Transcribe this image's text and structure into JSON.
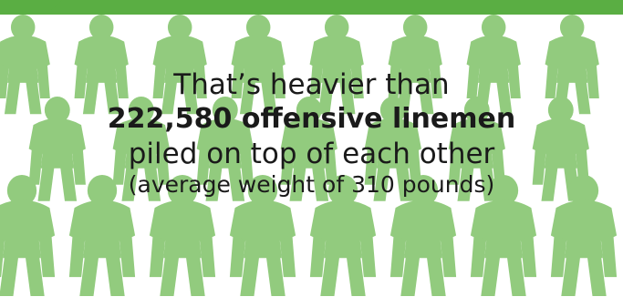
{
  "colors": {
    "accent_green": "#5aae43",
    "player_green": "#7fc267",
    "text": "#1a1a1a"
  },
  "caption": {
    "line1": "That’s heavier than",
    "line2": "222,580 offensive linemen",
    "line3": "piled on top of each other",
    "line4": "(average weight of 310 pounds)"
  }
}
